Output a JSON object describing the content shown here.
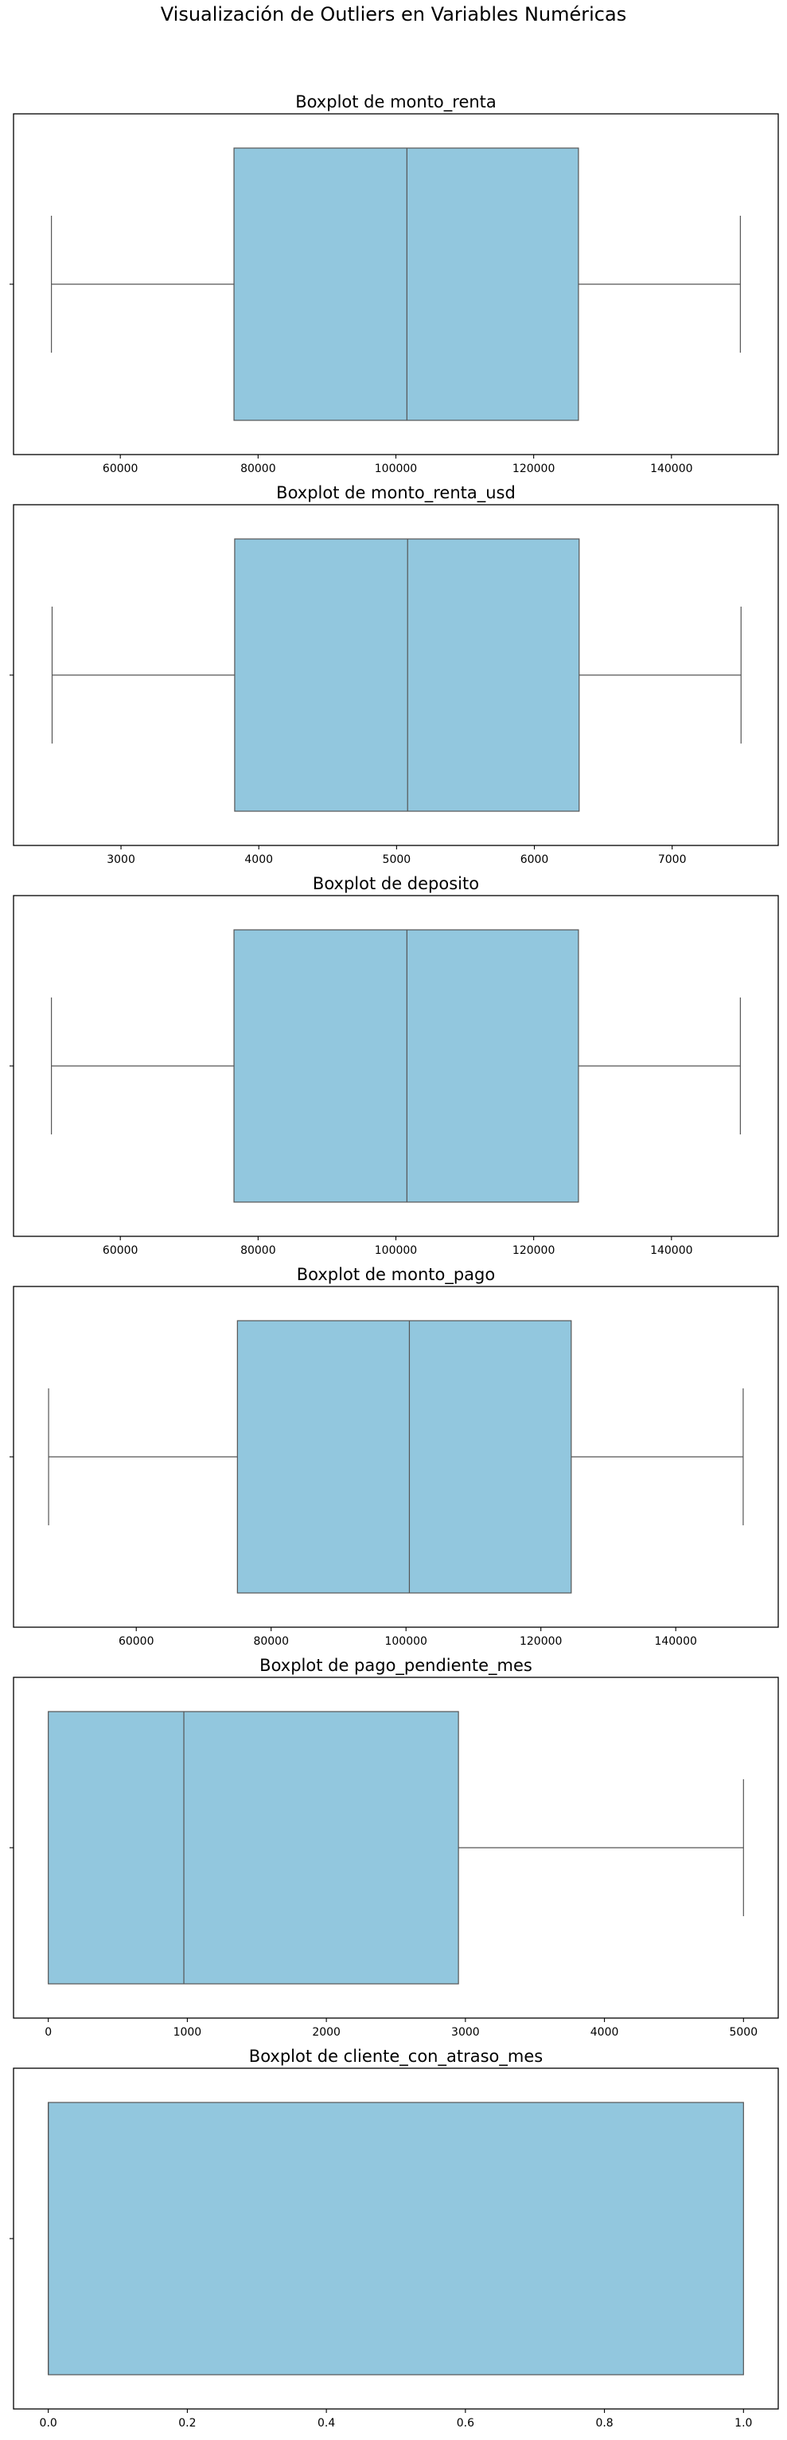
{
  "figure": {
    "title": "Visualización de Outliers en Variables Numéricas"
  },
  "colors": {
    "box_fill": "#92c7de",
    "box_edge": "#555555",
    "axes_edge": "#000000",
    "background": "#ffffff"
  },
  "chart_data": [
    {
      "type": "boxplot",
      "title": "Boxplot de monto_renta",
      "xlim": [
        44500,
        155500
      ],
      "xticks": [
        60000,
        80000,
        100000,
        120000,
        140000
      ],
      "xtick_labels": [
        "60000",
        "80000",
        "100000",
        "120000",
        "140000"
      ],
      "whisker_low": 50000,
      "q1": 76500,
      "median": 101600,
      "q3": 126500,
      "whisker_high": 150000,
      "grid": false
    },
    {
      "type": "boxplot",
      "title": "Boxplot de monto_renta_usd",
      "xlim": [
        2220,
        7770
      ],
      "xticks": [
        3000,
        4000,
        5000,
        6000,
        7000
      ],
      "xtick_labels": [
        "3000",
        "4000",
        "5000",
        "6000",
        "7000"
      ],
      "whisker_low": 2500,
      "q1": 3825,
      "median": 5080,
      "q3": 6325,
      "whisker_high": 7500,
      "grid": false
    },
    {
      "type": "boxplot",
      "title": "Boxplot de deposito",
      "xlim": [
        44500,
        155500
      ],
      "xticks": [
        60000,
        80000,
        100000,
        120000,
        140000
      ],
      "xtick_labels": [
        "60000",
        "80000",
        "100000",
        "120000",
        "140000"
      ],
      "whisker_low": 50000,
      "q1": 76500,
      "median": 101600,
      "q3": 126500,
      "whisker_high": 150000,
      "grid": false
    },
    {
      "type": "boxplot",
      "title": "Boxplot de monto_pago",
      "xlim": [
        41800,
        155200
      ],
      "xticks": [
        60000,
        80000,
        100000,
        120000,
        140000
      ],
      "xtick_labels": [
        "60000",
        "80000",
        "100000",
        "120000",
        "140000"
      ],
      "whisker_low": 47000,
      "q1": 75000,
      "median": 100500,
      "q3": 124500,
      "whisker_high": 150000,
      "grid": false
    },
    {
      "type": "boxplot",
      "title": "Boxplot de pago_pendiente_mes",
      "xlim": [
        -250,
        5250
      ],
      "xticks": [
        0,
        1000,
        2000,
        3000,
        4000,
        5000
      ],
      "xtick_labels": [
        "0",
        "1000",
        "2000",
        "3000",
        "4000",
        "5000"
      ],
      "whisker_low": 0,
      "q1": 0,
      "median": 975,
      "q3": 2950,
      "whisker_high": 5000,
      "grid": false
    },
    {
      "type": "boxplot",
      "title": "Boxplot de cliente_con_atraso_mes",
      "xlim": [
        -0.05,
        1.05
      ],
      "xticks": [
        0.0,
        0.2,
        0.4,
        0.6,
        0.8,
        1.0
      ],
      "xtick_labels": [
        "0.0",
        "0.2",
        "0.4",
        "0.6",
        "0.8",
        "1.0"
      ],
      "whisker_low": 0,
      "q1": 0,
      "median": 0,
      "q3": 1,
      "whisker_high": 1,
      "grid": false
    }
  ]
}
